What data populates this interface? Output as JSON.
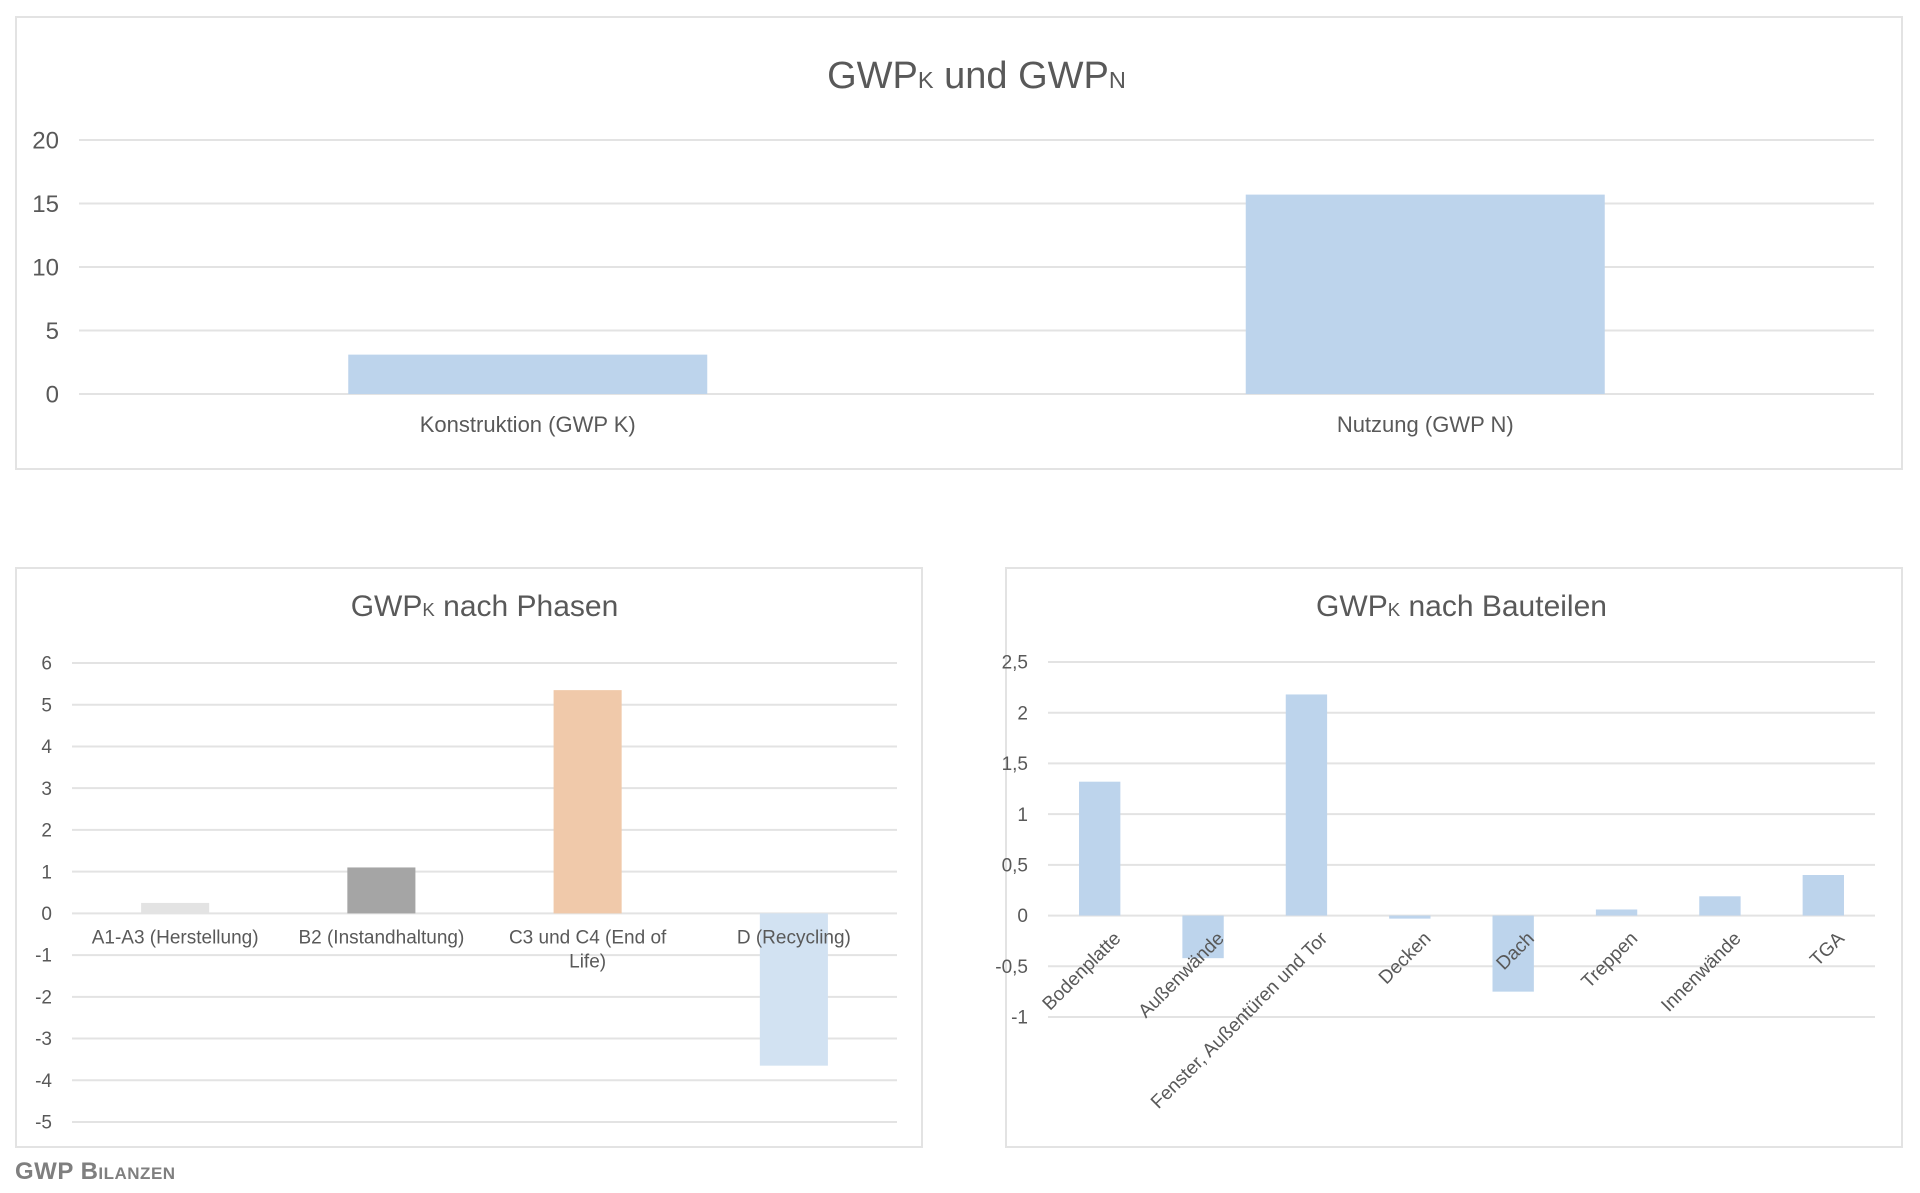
{
  "chart_data": [
    {
      "type": "bar",
      "title": "GWPK und GWPN",
      "title_parts": [
        "GWP",
        "K",
        " und GWP",
        "N"
      ],
      "categories": [
        "Konstruktion (GWP K)",
        "Nutzung (GWP N)"
      ],
      "values": [
        3.1,
        15.7
      ],
      "ylim": [
        0,
        20
      ],
      "yticks": [
        0,
        5,
        10,
        15,
        20
      ],
      "ytick_labels": [
        "0",
        "5",
        "10",
        "15",
        "20"
      ],
      "grid": true,
      "colors": [
        "#bdd4ec",
        "#bdd4ec"
      ]
    },
    {
      "type": "bar",
      "title": "GWPK nach Phasen",
      "title_parts": [
        "GWP",
        "K",
        " nach Phasen"
      ],
      "categories": [
        "A1-A3 (Herstellung)",
        "B2 (Instandhaltung)",
        "C3 und C4 (End of Life)",
        "D (Recycling)"
      ],
      "values": [
        0.25,
        1.1,
        5.35,
        -3.65
      ],
      "ylim": [
        -5,
        6
      ],
      "yticks": [
        -5,
        -4,
        -3,
        -2,
        -1,
        0,
        1,
        2,
        3,
        4,
        5,
        6
      ],
      "ytick_labels": [
        "-5",
        "-4",
        "-3",
        "-2",
        "-1",
        "0",
        "1",
        "2",
        "3",
        "4",
        "5",
        "6"
      ],
      "grid": true,
      "colors": [
        "#e3e3e3",
        "#a5a5a5",
        "#f0c9aa",
        "#d2e2f2"
      ]
    },
    {
      "type": "bar",
      "title": "GWPK nach Bauteilen",
      "title_parts": [
        "GWP",
        "K",
        " nach Bauteilen"
      ],
      "categories": [
        "Bodenplatte",
        "Außenwände",
        "Fenster, Außentüren und Tor",
        "Decken",
        "Dach",
        "Treppen",
        "Innenwände",
        "TGA"
      ],
      "values": [
        1.32,
        -0.42,
        2.18,
        -0.03,
        -0.75,
        0.06,
        0.19,
        0.4
      ],
      "ylim": [
        -1,
        2.5
      ],
      "yticks": [
        -1,
        -0.5,
        0,
        0.5,
        1,
        1.5,
        2,
        2.5
      ],
      "ytick_labels": [
        "-1",
        "-0,5",
        "0",
        "0,5",
        "1",
        "1,5",
        "2",
        "2,5"
      ],
      "grid": true,
      "colors": [
        "#bdd4ec"
      ]
    }
  ],
  "footer": "GWP Bilanzen"
}
